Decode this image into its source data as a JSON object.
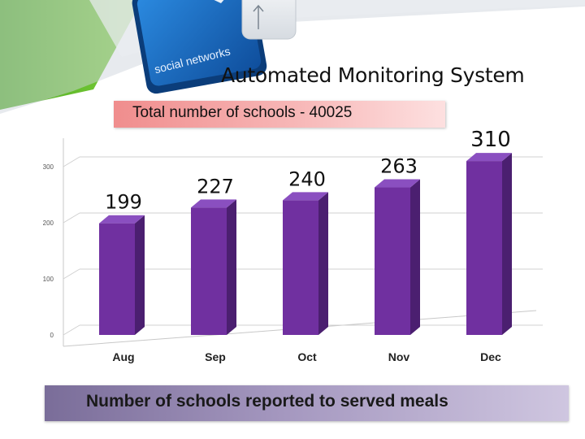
{
  "header": {
    "title": "Automated Monitoring System",
    "total_label": "Total number of schools - 40025",
    "banner_key_text": "social networks",
    "icons": [
      "keyboard-key-icon",
      "cursor-arrow-icon"
    ],
    "colors": {
      "green": "#5cbf2a",
      "blue": "#1f6fc4"
    }
  },
  "chart_data": {
    "type": "bar",
    "categories": [
      "Aug",
      "Sep",
      "Oct",
      "Nov",
      "Dec"
    ],
    "values": [
      199,
      227,
      240,
      263,
      310
    ],
    "data_labels": [
      "199",
      "227",
      "240",
      "263",
      "310"
    ],
    "ylim": [
      0,
      300
    ],
    "yticks": [
      0,
      100,
      200,
      300
    ],
    "grid": true,
    "xlabel": "",
    "ylabel": "",
    "bar_color": "#7030a0"
  },
  "footer": {
    "caption": "Number of  schools reported to served meals"
  }
}
